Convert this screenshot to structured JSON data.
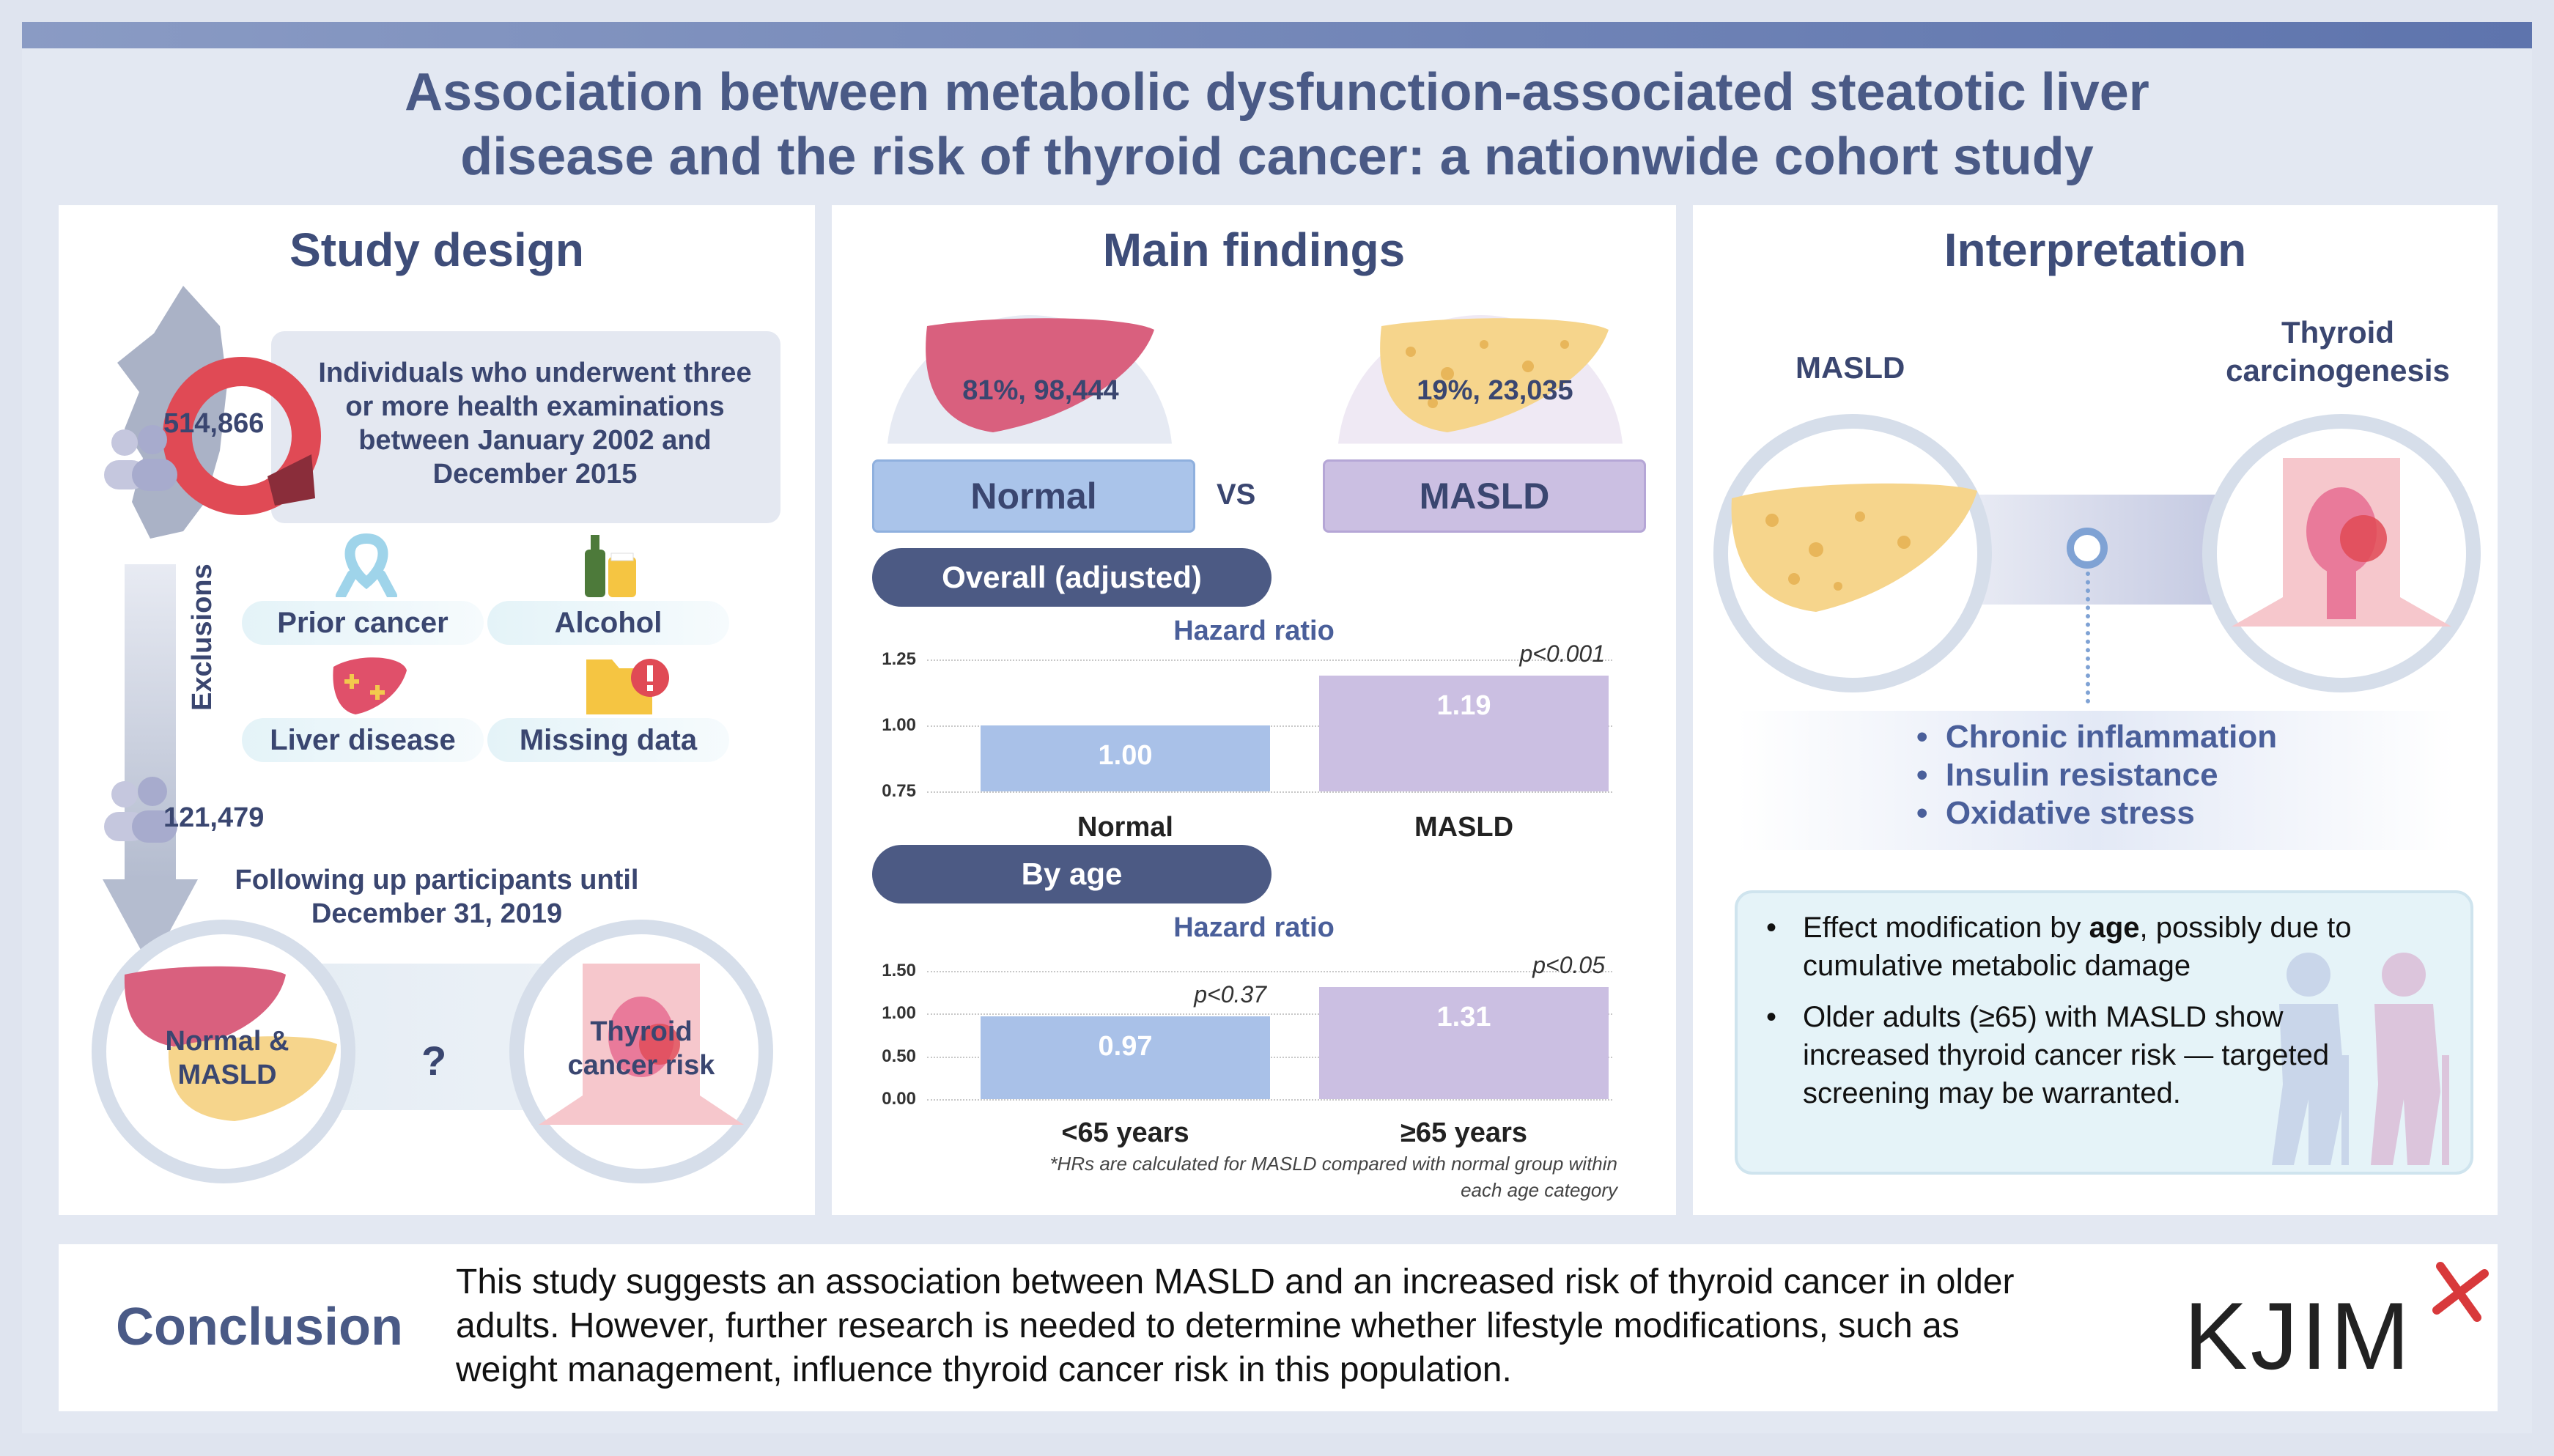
{
  "title": {
    "line1": "Association between metabolic dysfunction-associated steatotic liver",
    "line2": "disease and the risk of thyroid cancer: a nationwide cohort study"
  },
  "study_design": {
    "heading": "Study design",
    "initial_count": "514,866",
    "inclusion": [
      "Individuals who underwent three",
      "or more health examinations",
      "between January 2002 and",
      "December 2015"
    ],
    "exclusions_label": "Exclusions",
    "exclusions": [
      "Prior cancer",
      "Alcohol",
      "Liver disease",
      "Missing data"
    ],
    "final_count": "121,479",
    "followup": [
      "Following up participants until",
      "December 31, 2019"
    ],
    "group_label_line1": "Normal &",
    "group_label_line2": "MASLD",
    "question": "?",
    "outcome_line1": "Thyroid",
    "outcome_line2": "cancer risk"
  },
  "main_findings": {
    "heading": "Main findings",
    "normal_pct": "81%, 98,444",
    "masld_pct": "19%, 23,035",
    "normal_label": "Normal",
    "vs_label": "VS",
    "masld_label": "MASLD",
    "overall_pill": "Overall (adjusted)",
    "by_age_pill": "By age",
    "hr_title": "Hazard ratio",
    "footnote_line1": "*HRs are calculated for MASLD compared with normal group within",
    "footnote_line2": "each age category"
  },
  "chart_data": [
    {
      "type": "bar",
      "title": "Hazard ratio",
      "categories": [
        "Normal",
        "MASLD"
      ],
      "values": [
        1.0,
        1.19
      ],
      "value_labels": [
        "1.00",
        "1.19"
      ],
      "ylim": [
        0.75,
        1.25
      ],
      "yticks": [
        "0.75",
        "1.00",
        "1.25"
      ],
      "annotations": [
        "",
        "p<0.001"
      ],
      "colors": [
        "#a9c1e8",
        "#cbbfe2"
      ],
      "grid": true
    },
    {
      "type": "bar",
      "title": "Hazard ratio",
      "categories": [
        "<65 years",
        "≥65 years"
      ],
      "values": [
        0.97,
        1.31
      ],
      "value_labels": [
        "0.97",
        "1.31"
      ],
      "ylim": [
        0,
        1.5
      ],
      "yticks": [
        "0.00",
        "0.50",
        "1.00",
        "1.50"
      ],
      "annotations": [
        "p<0.37",
        "p<0.05"
      ],
      "colors": [
        "#a9c1e8",
        "#cbbfe2"
      ],
      "grid": true
    }
  ],
  "interpretation": {
    "heading": "Interpretation",
    "left_label": "MASLD",
    "right_label_line1": "Thyroid",
    "right_label_line2": "carcinogenesis",
    "mechanisms": [
      "Chronic inflammation",
      "Insulin resistance",
      "Oxidative stress"
    ],
    "effect_line1_pre": "Effect modification by ",
    "effect_line1_bold": "age",
    "effect_line1_post": ", possibly due to",
    "effect_line2": "cumulative metabolic damage",
    "older_line1": "Older adults (≥65) with MASLD show",
    "older_line2": "increased thyroid cancer risk — targeted",
    "older_line3": "screening may be warranted."
  },
  "conclusion": {
    "label": "Conclusion",
    "line1": "This study suggests an association between MASLD and an increased risk of thyroid cancer in older",
    "line2": "adults. However, further research is needed to determine whether lifestyle modifications, such as",
    "line3": "weight management, influence thyroid cancer risk in this population."
  },
  "logo": {
    "text": "KJIM"
  },
  "colors": {
    "title": "#4a5a86",
    "normal": "#a9c1e8",
    "masld": "#cbbfe2",
    "pill": "#4c5a84",
    "liver_normal": "#d9607e",
    "liver_fatty": "#f6d58c"
  }
}
